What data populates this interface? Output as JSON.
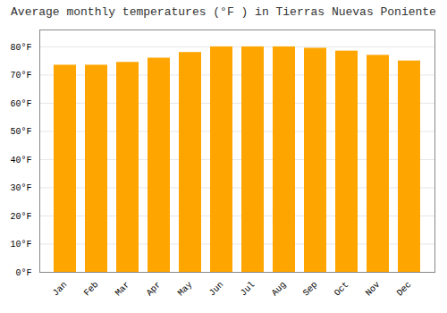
{
  "chart_data": {
    "type": "bar",
    "title": "Average monthly temperatures (°F ) in Tierras Nuevas Poniente",
    "categories": [
      "Jan",
      "Feb",
      "Mar",
      "Apr",
      "May",
      "Jun",
      "Jul",
      "Aug",
      "Sep",
      "Oct",
      "Nov",
      "Dec"
    ],
    "values": [
      73.5,
      73.5,
      74.5,
      76,
      78,
      80,
      80,
      80,
      79.5,
      78.5,
      77,
      75
    ],
    "color": "#FFA500",
    "ylim": [
      0,
      86
    ],
    "yticks": [
      {
        "value": 0,
        "label": "0°F"
      },
      {
        "value": 10,
        "label": "10°F"
      },
      {
        "value": 20,
        "label": "20°F"
      },
      {
        "value": 30,
        "label": "30°F"
      },
      {
        "value": 40,
        "label": "40°F"
      },
      {
        "value": 50,
        "label": "50°F"
      },
      {
        "value": 60,
        "label": "60°F"
      },
      {
        "value": 70,
        "label": "70°F"
      },
      {
        "value": 80,
        "label": "80°F"
      }
    ],
    "grid": true
  }
}
